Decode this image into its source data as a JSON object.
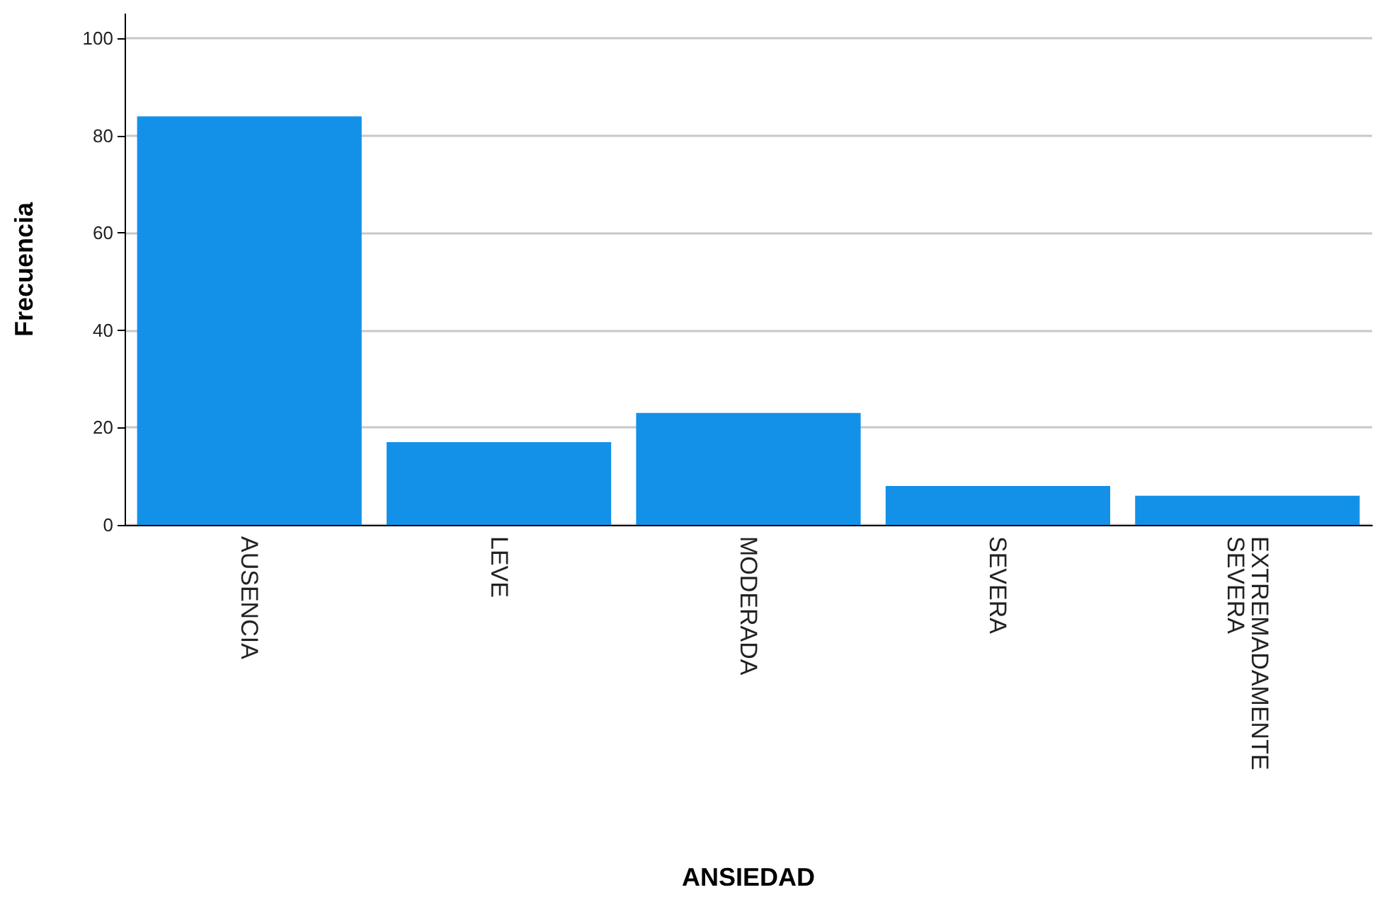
{
  "chart_data": {
    "type": "bar",
    "categories": [
      "AUSENCIA",
      "LEVE",
      "MODERADA",
      "SEVERA",
      "EXTREMADAMENTE SEVERA"
    ],
    "values": [
      84,
      17,
      23,
      8,
      6
    ],
    "color": "#1391e8",
    "xlabel": "ANSIEDAD",
    "ylabel": "Frecuencia",
    "ylim": [
      0,
      105
    ],
    "yticks": [
      0,
      20,
      40,
      60,
      80,
      100
    ],
    "grid": "y"
  }
}
